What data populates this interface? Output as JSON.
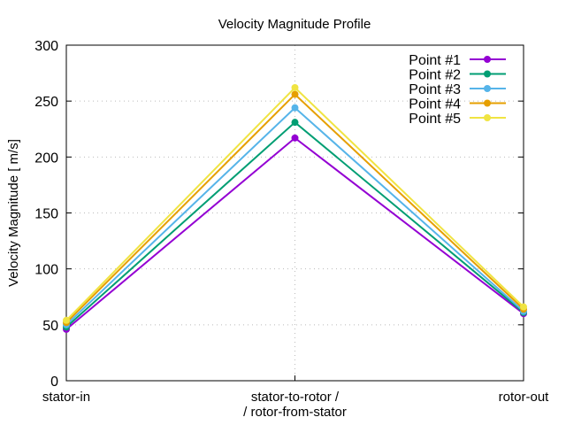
{
  "chart_data": {
    "type": "line",
    "title": "Velocity Magnitude Profile",
    "xlabel": "",
    "ylabel": "Velocity Magnitude [ m/s]",
    "categories": [
      [
        "stator-in"
      ],
      [
        "stator-to-rotor /",
        "/ rotor-from-stator"
      ],
      [
        "rotor-out"
      ]
    ],
    "ylim": [
      0,
      300
    ],
    "yticks": [
      0,
      50,
      100,
      150,
      200,
      250,
      300
    ],
    "grid": true,
    "legend_position": "top-right",
    "series": [
      {
        "name": "Point #1",
        "color": "#9400d3",
        "values": [
          46,
          217,
          60
        ]
      },
      {
        "name": "Point #2",
        "color": "#009e73",
        "values": [
          48,
          231,
          61
        ]
      },
      {
        "name": "Point #3",
        "color": "#56b4e9",
        "values": [
          50,
          244,
          62
        ]
      },
      {
        "name": "Point #4",
        "color": "#e69f00",
        "values": [
          52,
          256,
          64
        ]
      },
      {
        "name": "Point #5",
        "color": "#f0e442",
        "values": [
          54,
          262,
          66
        ]
      }
    ]
  }
}
